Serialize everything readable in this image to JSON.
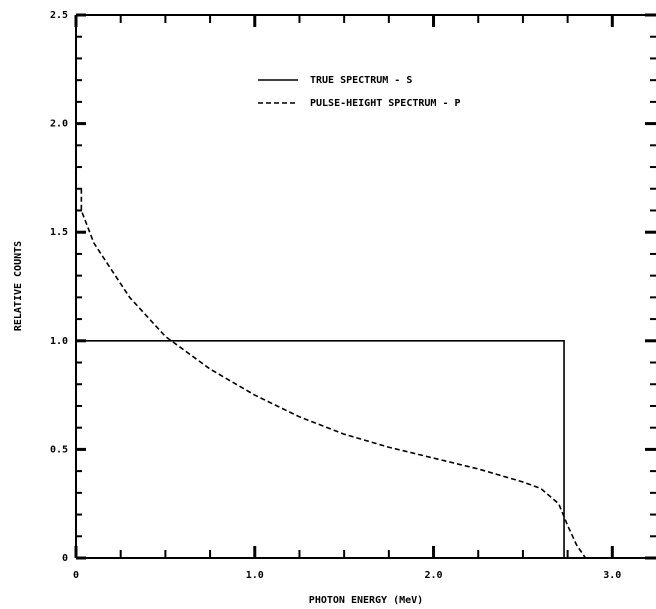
{
  "chart_data": {
    "type": "line",
    "xlabel": "PHOTON ENERGY (MeV)",
    "ylabel": "RELATIVE COUNTS",
    "xlim": [
      0,
      3.25
    ],
    "ylim": [
      0,
      2.5
    ],
    "xticks": [
      0,
      {
        "value": 1,
        "label": "1.0"
      },
      {
        "value": 2,
        "label": "2.0"
      },
      {
        "value": 3,
        "label": "3.0"
      }
    ],
    "yticks": [
      0,
      0.5,
      {
        "value": 1,
        "label": "1.0"
      },
      1.5,
      {
        "value": 2,
        "label": "2.0"
      },
      2.5
    ],
    "xminorticks": [
      0.25,
      0.5,
      0.75,
      1.25,
      1.5,
      1.75,
      2.25,
      2.5,
      2.75
    ],
    "yminorticks": [
      0.1,
      0.2,
      0.3,
      0.4,
      0.6,
      0.7,
      0.8,
      0.9,
      1.1,
      1.2,
      1.3,
      1.4,
      1.6,
      1.7,
      1.8,
      1.9,
      2.1,
      2.2,
      2.3,
      2.4
    ],
    "series": [
      {
        "name": "TRUE SPECTRUM - S",
        "color": "#000000",
        "dash": false,
        "x": [
          0,
          2.73,
          2.73
        ],
        "values": [
          1.0,
          1.0,
          0
        ]
      },
      {
        "name": "PULSE-HEIGHT SPECTRUM - P",
        "color": "#000000",
        "dash": true,
        "x": [
          0.03,
          0.03,
          0.1,
          0.3,
          0.5,
          0.75,
          1.0,
          1.25,
          1.5,
          1.75,
          2.0,
          2.25,
          2.5,
          2.6,
          2.7,
          2.75,
          2.8,
          2.85
        ],
        "values": [
          1.7,
          1.6,
          1.45,
          1.2,
          1.02,
          0.87,
          0.75,
          0.65,
          0.57,
          0.51,
          0.46,
          0.41,
          0.35,
          0.32,
          0.25,
          0.15,
          0.06,
          0
        ]
      }
    ]
  }
}
